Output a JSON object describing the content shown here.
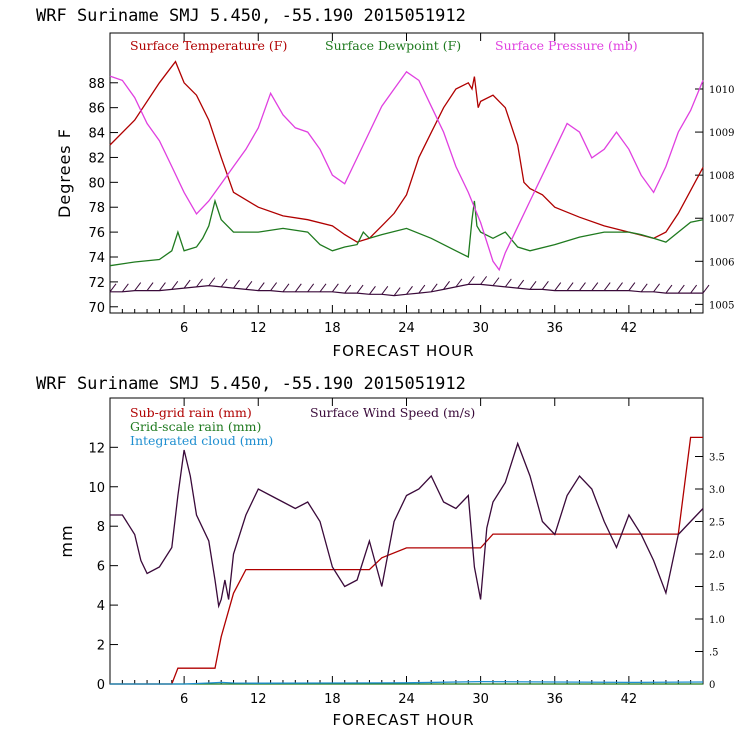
{
  "chart_data": [
    {
      "type": "line",
      "title": "WRF   Suriname SMJ   5.450, -55.190  2015051912",
      "xlabel": "FORECAST HOUR",
      "ylabel": "Degrees F",
      "xlim": [
        0,
        48
      ],
      "ylim": [
        69.5,
        92
      ],
      "y2lim": [
        1004.8,
        1011.3
      ],
      "xticks": [
        6,
        12,
        18,
        24,
        30,
        36,
        42
      ],
      "xtick_labels": [
        "6",
        "12",
        "18",
        "24",
        "30",
        "36",
        "42"
      ],
      "yticks": [
        70,
        72,
        74,
        76,
        78,
        80,
        82,
        84,
        86,
        88
      ],
      "ytick_labels": [
        "70",
        "72",
        "74",
        "76",
        "78",
        "80",
        "82",
        "84",
        "86",
        "88"
      ],
      "y2ticks": [
        1005,
        1006,
        1007,
        1008,
        1009,
        1010
      ],
      "y2tick_labels": [
        "1005",
        "1006",
        "1007",
        "1008",
        "1009",
        "1010"
      ],
      "series": [
        {
          "name": "Surface Temperature (F)",
          "color": "#b00000",
          "axis": "left",
          "x": [
            0,
            2,
            4,
            5.3,
            6,
            7,
            8,
            9,
            10,
            12,
            14,
            16,
            18,
            19,
            20,
            21,
            22,
            23,
            24,
            25,
            26,
            27,
            28,
            29,
            29.3,
            29.5,
            29.8,
            30,
            31,
            32,
            33,
            33.5,
            34,
            35,
            36,
            37,
            38,
            40,
            42,
            44,
            45,
            46,
            48
          ],
          "values": [
            83,
            85,
            88,
            89.7,
            88,
            87,
            85,
            82,
            79.2,
            78,
            77.3,
            77,
            76.5,
            75.8,
            75.2,
            75.5,
            76.5,
            77.5,
            79,
            82,
            84,
            86,
            87.5,
            88,
            87.5,
            88.5,
            86,
            86.5,
            87,
            86,
            83,
            80,
            79.5,
            79,
            78,
            77.6,
            77.2,
            76.5,
            76,
            75.5,
            76,
            77.5,
            81.2
          ]
        },
        {
          "name": "Surface Dewpoint (F)",
          "color": "#1f7a1f",
          "axis": "left",
          "x": [
            0,
            2,
            4,
            5,
            5.5,
            6,
            7,
            7.5,
            8,
            8.5,
            9,
            9.5,
            10,
            12,
            14,
            16,
            17,
            18,
            19,
            20,
            20.5,
            21,
            22,
            24,
            26,
            28,
            29,
            29.3,
            29.5,
            29.7,
            30,
            31,
            32,
            33,
            34,
            36,
            38,
            40,
            42,
            43,
            44,
            45,
            46,
            47,
            48
          ],
          "values": [
            73.3,
            73.6,
            73.8,
            74.5,
            76,
            74.5,
            74.8,
            75.5,
            76.5,
            78.5,
            77,
            76.5,
            76,
            76,
            76.3,
            76,
            75,
            74.5,
            74.8,
            75,
            76,
            75.5,
            75.8,
            76.3,
            75.5,
            74.5,
            74,
            77,
            78.5,
            76.5,
            76,
            75.5,
            76,
            74.8,
            74.5,
            75,
            75.6,
            76,
            76,
            75.8,
            75.5,
            75.2,
            76,
            76.8,
            77
          ]
        },
        {
          "name": "Surface Pressure (mb)",
          "color": "#e040e0",
          "axis": "right",
          "x": [
            0,
            1,
            2,
            3,
            4,
            5,
            6,
            7,
            8,
            9,
            10,
            11,
            12,
            13,
            14,
            15,
            16,
            17,
            18,
            19,
            20,
            21,
            22,
            23,
            24,
            25,
            26,
            27,
            28,
            29,
            30,
            31,
            31.5,
            32,
            33,
            34,
            35,
            36,
            37,
            38,
            39,
            40,
            41,
            42,
            43,
            44,
            45,
            46,
            47,
            48
          ],
          "values": [
            1010.3,
            1010.2,
            1009.8,
            1009.2,
            1008.8,
            1008.2,
            1007.6,
            1007.1,
            1007.4,
            1007.8,
            1008.2,
            1008.6,
            1009.1,
            1009.9,
            1009.4,
            1009.1,
            1009.0,
            1008.6,
            1008.0,
            1007.8,
            1008.4,
            1009.0,
            1009.6,
            1010.0,
            1010.4,
            1010.2,
            1009.6,
            1009.0,
            1008.2,
            1007.6,
            1006.9,
            1006.0,
            1005.8,
            1006.2,
            1006.8,
            1007.4,
            1008.0,
            1008.6,
            1009.2,
            1009.0,
            1008.4,
            1008.6,
            1009.0,
            1008.6,
            1008.0,
            1007.6,
            1008.2,
            1009.0,
            1009.5,
            1010.2
          ]
        }
      ],
      "wind_barbs": {
        "color": "#3a0a3a",
        "y_level": 71.2,
        "x": [
          0,
          1,
          2,
          3,
          4,
          5,
          6,
          7,
          8,
          9,
          10,
          11,
          12,
          13,
          14,
          15,
          16,
          17,
          18,
          19,
          20,
          21,
          22,
          23,
          24,
          25,
          26,
          27,
          28,
          29,
          30,
          31,
          32,
          33,
          34,
          35,
          36,
          37,
          38,
          39,
          40,
          41,
          42,
          43,
          44,
          45,
          46,
          47,
          48
        ],
        "values": [
          71.2,
          71.2,
          71.3,
          71.3,
          71.3,
          71.4,
          71.5,
          71.6,
          71.7,
          71.6,
          71.5,
          71.4,
          71.3,
          71.3,
          71.2,
          71.2,
          71.2,
          71.2,
          71.2,
          71.1,
          71.1,
          71.0,
          71.0,
          70.9,
          71.0,
          71.1,
          71.2,
          71.4,
          71.6,
          71.8,
          71.8,
          71.7,
          71.6,
          71.5,
          71.4,
          71.4,
          71.3,
          71.3,
          71.3,
          71.3,
          71.3,
          71.3,
          71.3,
          71.2,
          71.2,
          71.1,
          71.1,
          71.1,
          71.1
        ]
      }
    },
    {
      "type": "line",
      "title": "WRF   Suriname SMJ   5.450, -55.190  2015051912",
      "xlabel": "FORECAST HOUR",
      "ylabel": "mm",
      "xlim": [
        0,
        48
      ],
      "ylim": [
        0,
        14.5
      ],
      "y2lim": [
        0,
        4.4
      ],
      "xticks": [
        6,
        12,
        18,
        24,
        30,
        36,
        42
      ],
      "xtick_labels": [
        "6",
        "12",
        "18",
        "24",
        "30",
        "36",
        "42"
      ],
      "yticks": [
        0,
        2,
        4,
        6,
        8,
        10,
        12
      ],
      "ytick_labels": [
        "0",
        "2",
        "4",
        "6",
        "8",
        "10",
        "12"
      ],
      "y2ticks": [
        0,
        0.5,
        1.0,
        1.5,
        2.0,
        2.5,
        3.0,
        3.5
      ],
      "y2tick_labels": [
        "0",
        ".5",
        "1.0",
        "1.5",
        "2.0",
        "2.5",
        "3.0",
        "3.5"
      ],
      "series": [
        {
          "name": "Sub-grid rain (mm)",
          "color": "#b00000",
          "axis": "left",
          "x": [
            0,
            5,
            5.5,
            8.5,
            9,
            10,
            11,
            12,
            13,
            20,
            21,
            22,
            24,
            30,
            31,
            35,
            46,
            47,
            48
          ],
          "values": [
            0,
            0,
            0.8,
            0.8,
            2.4,
            4.6,
            5.8,
            5.8,
            5.8,
            5.8,
            5.8,
            6.4,
            6.9,
            6.9,
            7.6,
            7.6,
            7.6,
            12.5,
            12.5
          ]
        },
        {
          "name": "Grid-scale rain (mm)",
          "color": "#1f7a1f",
          "axis": "left",
          "x": [
            0,
            48
          ],
          "values": [
            0,
            0
          ]
        },
        {
          "name": "Integrated cloud (mm)",
          "color": "#1f8fd0",
          "axis": "left",
          "x": [
            0,
            6,
            8,
            9,
            10,
            12,
            18,
            24,
            30,
            36,
            42,
            48
          ],
          "values": [
            0,
            0,
            0.05,
            0.08,
            0.05,
            0.04,
            0.05,
            0.06,
            0.12,
            0.1,
            0.08,
            0.1
          ]
        },
        {
          "name": "Surface Wind Speed (m/s)",
          "color": "#3a0a3a",
          "axis": "right",
          "x": [
            0,
            1,
            2,
            2.5,
            3,
            4,
            5,
            5.5,
            6,
            6.5,
            7,
            8,
            8.5,
            8.8,
            9,
            9.3,
            9.6,
            10,
            11,
            12,
            13,
            14,
            15,
            16,
            17,
            18,
            19,
            20,
            21,
            22,
            23,
            24,
            25,
            26,
            27,
            28,
            29,
            29.5,
            30,
            30.5,
            31,
            32,
            33,
            34,
            35,
            36,
            37,
            38,
            39,
            40,
            41,
            42,
            43,
            44,
            45,
            46,
            47,
            48
          ],
          "values": [
            2.6,
            2.6,
            2.3,
            1.9,
            1.7,
            1.8,
            2.1,
            2.9,
            3.6,
            3.2,
            2.6,
            2.2,
            1.6,
            1.2,
            1.3,
            1.6,
            1.3,
            2.0,
            2.6,
            3.0,
            2.9,
            2.8,
            2.7,
            2.8,
            2.5,
            1.8,
            1.5,
            1.6,
            2.2,
            1.5,
            2.5,
            2.9,
            3.0,
            3.2,
            2.8,
            2.7,
            2.9,
            1.8,
            1.3,
            2.4,
            2.8,
            3.1,
            3.7,
            3.2,
            2.5,
            2.3,
            2.9,
            3.2,
            3.0,
            2.5,
            2.1,
            2.6,
            2.3,
            1.9,
            1.4,
            2.3,
            2.5,
            2.7
          ]
        }
      ]
    }
  ]
}
